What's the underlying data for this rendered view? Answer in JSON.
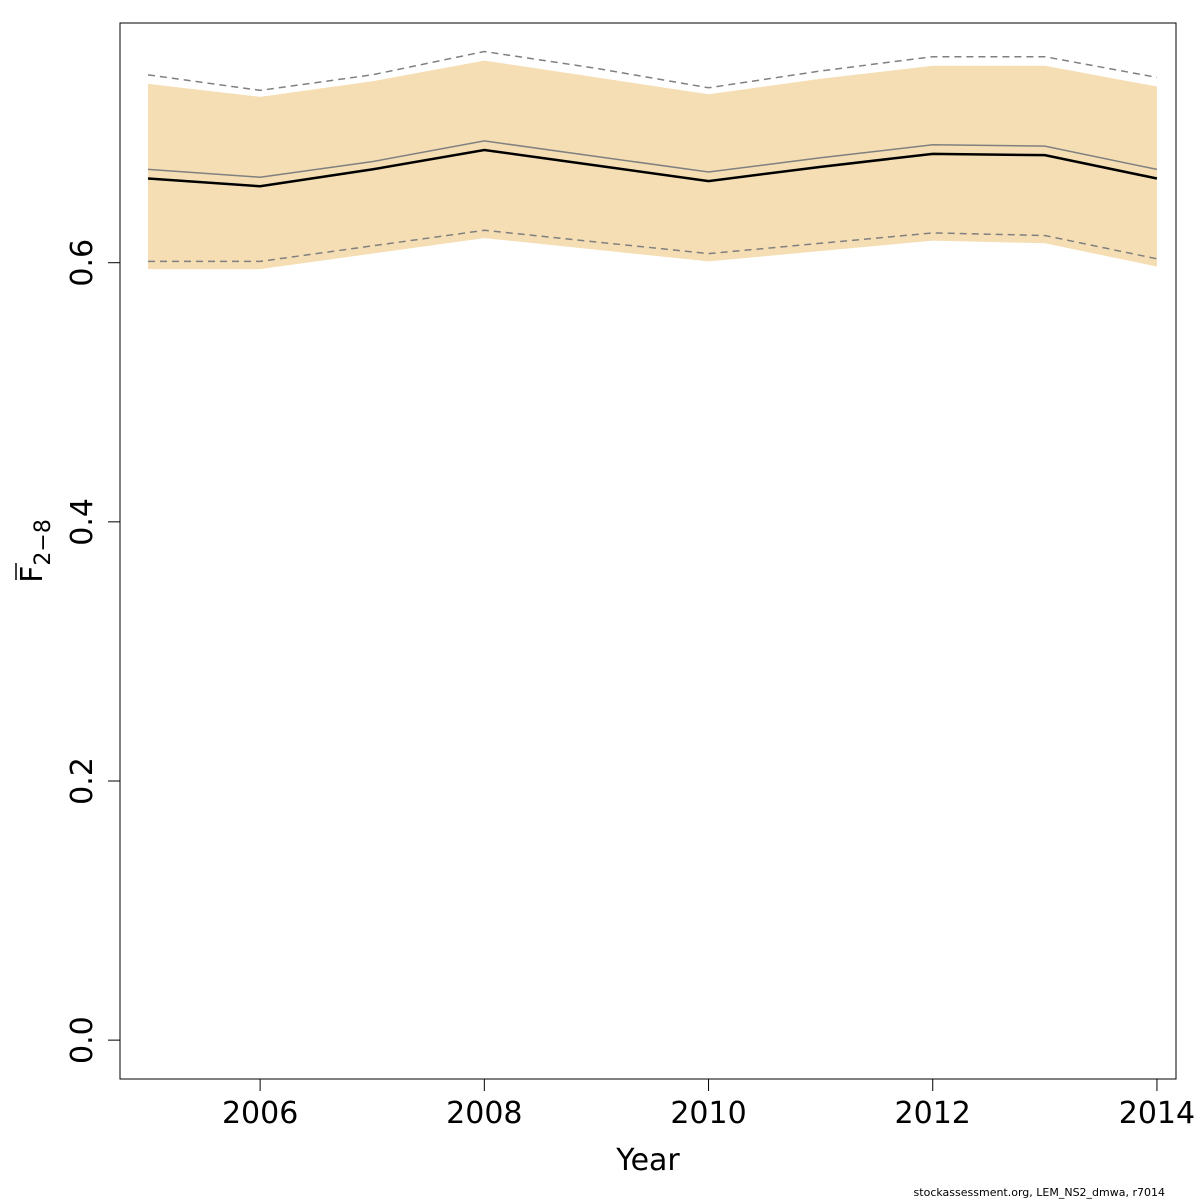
{
  "chart_data": {
    "type": "line",
    "xlabel": "Year",
    "ylabel": {
      "base": "F",
      "subscript": "2−8"
    },
    "credit": "stockassessment.org, LEM_NS2_dmwa, r7014",
    "x": [
      2005,
      2006,
      2007,
      2008,
      2009,
      2010,
      2011,
      2012,
      2013,
      2014
    ],
    "xlim": [
      2004.75,
      2014.17
    ],
    "ylim": [
      -0.03,
      0.785
    ],
    "xticks": [
      2006,
      2008,
      2010,
      2012,
      2014
    ],
    "yticks": [
      0.0,
      0.2,
      0.4,
      0.6
    ],
    "ytick_labels": [
      "0.0",
      "0.2",
      "0.4",
      "0.6"
    ],
    "band": {
      "lower": [
        0.595,
        0.595,
        0.607,
        0.619,
        0.61,
        0.601,
        0.609,
        0.617,
        0.615,
        0.597
      ],
      "upper": [
        0.738,
        0.728,
        0.74,
        0.756,
        0.743,
        0.73,
        0.742,
        0.752,
        0.752,
        0.736
      ],
      "color": "#f5deb3"
    },
    "series": [
      {
        "values": [
          0.665,
          0.659,
          0.672,
          0.687,
          0.675,
          0.663,
          0.674,
          0.684,
          0.683,
          0.665
        ],
        "color": "#000000",
        "style": "solid"
      },
      {
        "values": [
          0.672,
          0.666,
          0.678,
          0.694,
          0.682,
          0.67,
          0.681,
          0.691,
          0.69,
          0.672
        ],
        "color": "#808080",
        "style": "solid"
      },
      {
        "values": [
          0.745,
          0.733,
          0.745,
          0.763,
          0.75,
          0.735,
          0.748,
          0.759,
          0.759,
          0.743
        ],
        "color": "#808080",
        "style": "dashed"
      },
      {
        "values": [
          0.601,
          0.601,
          0.613,
          0.625,
          0.616,
          0.607,
          0.615,
          0.623,
          0.621,
          0.603
        ],
        "color": "#808080",
        "style": "dashed"
      }
    ],
    "grid": false,
    "legend": "none"
  }
}
